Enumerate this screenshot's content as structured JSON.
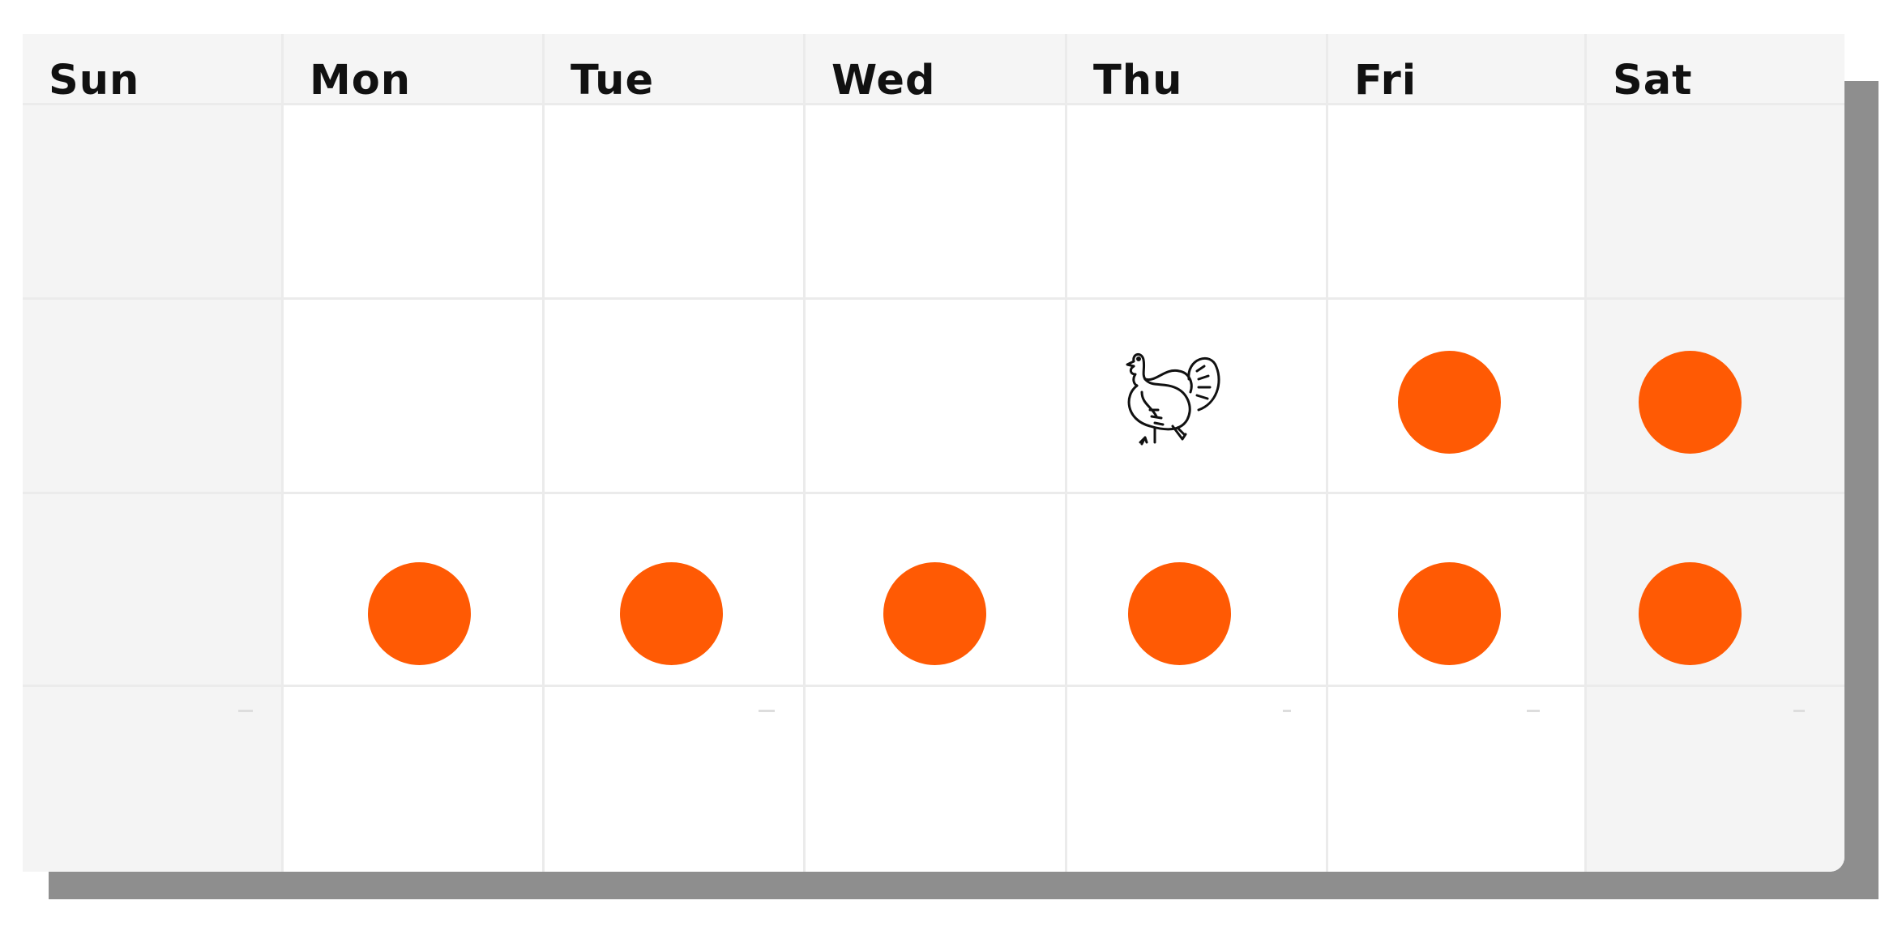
{
  "calendar": {
    "days": [
      "Sun",
      "Mon",
      "Tue",
      "Wed",
      "Thu",
      "Fri",
      "Sat"
    ],
    "marker_color": "#ff5a04",
    "rows": [
      [
        "",
        "",
        "",
        "",
        "",
        "",
        ""
      ],
      [
        "",
        "",
        "",
        "",
        "turkey-icon",
        "marker",
        "marker"
      ],
      [
        "",
        "marker",
        "marker",
        "marker",
        "marker",
        "marker",
        "marker"
      ],
      [
        "",
        "",
        "",
        "",
        "",
        "",
        ""
      ]
    ]
  }
}
